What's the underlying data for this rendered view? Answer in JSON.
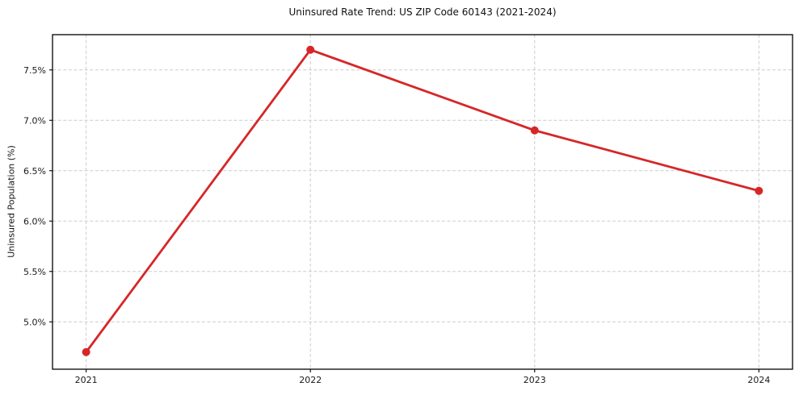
{
  "chart": {
    "title": "Uninsured Rate Trend: US ZIP Code 60143 (2021-2024)",
    "ylabel": "Uninsured Population (%)"
  },
  "chart_data": {
    "type": "line",
    "title": "Uninsured Rate Trend: US ZIP Code 60143 (2021-2024)",
    "xlabel": "",
    "ylabel": "Uninsured Population (%)",
    "x": [
      2021,
      2022,
      2023,
      2024
    ],
    "values": [
      4.7,
      7.7,
      6.9,
      6.3
    ],
    "xticks": [
      "2021",
      "2022",
      "2023",
      "2024"
    ],
    "xtick_values": [
      2021,
      2022,
      2023,
      2024
    ],
    "yticks": [
      "5.0%",
      "5.5%",
      "6.0%",
      "6.5%",
      "7.0%",
      "7.5%"
    ],
    "ytick_values": [
      5.0,
      5.5,
      6.0,
      6.5,
      7.0,
      7.5
    ],
    "xlim": [
      2020.85,
      2024.15
    ],
    "ylim": [
      4.53,
      7.85
    ],
    "grid": true,
    "grid_style": "dashed",
    "grid_color": "#cccccc",
    "line_color": "#d62728",
    "marker": "circle",
    "legend": "none"
  }
}
